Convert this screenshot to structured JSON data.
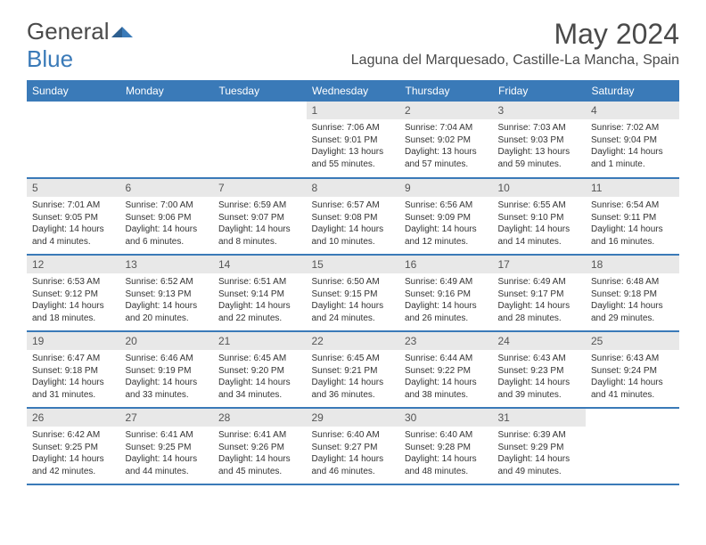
{
  "logo": {
    "text1": "General",
    "text2": "Blue"
  },
  "title": "May 2024",
  "location": "Laguna del Marquesado, Castille-La Mancha, Spain",
  "colors": {
    "header_bg": "#3a7ab8",
    "daynum_bg": "#e8e8e8",
    "border": "#3a7ab8",
    "text": "#4a4a4a"
  },
  "day_headers": [
    "Sunday",
    "Monday",
    "Tuesday",
    "Wednesday",
    "Thursday",
    "Friday",
    "Saturday"
  ],
  "weeks": [
    [
      {
        "n": "",
        "sr": "",
        "ss": "",
        "dl": ""
      },
      {
        "n": "",
        "sr": "",
        "ss": "",
        "dl": ""
      },
      {
        "n": "",
        "sr": "",
        "ss": "",
        "dl": ""
      },
      {
        "n": "1",
        "sr": "Sunrise: 7:06 AM",
        "ss": "Sunset: 9:01 PM",
        "dl": "Daylight: 13 hours and 55 minutes."
      },
      {
        "n": "2",
        "sr": "Sunrise: 7:04 AM",
        "ss": "Sunset: 9:02 PM",
        "dl": "Daylight: 13 hours and 57 minutes."
      },
      {
        "n": "3",
        "sr": "Sunrise: 7:03 AM",
        "ss": "Sunset: 9:03 PM",
        "dl": "Daylight: 13 hours and 59 minutes."
      },
      {
        "n": "4",
        "sr": "Sunrise: 7:02 AM",
        "ss": "Sunset: 9:04 PM",
        "dl": "Daylight: 14 hours and 1 minute."
      }
    ],
    [
      {
        "n": "5",
        "sr": "Sunrise: 7:01 AM",
        "ss": "Sunset: 9:05 PM",
        "dl": "Daylight: 14 hours and 4 minutes."
      },
      {
        "n": "6",
        "sr": "Sunrise: 7:00 AM",
        "ss": "Sunset: 9:06 PM",
        "dl": "Daylight: 14 hours and 6 minutes."
      },
      {
        "n": "7",
        "sr": "Sunrise: 6:59 AM",
        "ss": "Sunset: 9:07 PM",
        "dl": "Daylight: 14 hours and 8 minutes."
      },
      {
        "n": "8",
        "sr": "Sunrise: 6:57 AM",
        "ss": "Sunset: 9:08 PM",
        "dl": "Daylight: 14 hours and 10 minutes."
      },
      {
        "n": "9",
        "sr": "Sunrise: 6:56 AM",
        "ss": "Sunset: 9:09 PM",
        "dl": "Daylight: 14 hours and 12 minutes."
      },
      {
        "n": "10",
        "sr": "Sunrise: 6:55 AM",
        "ss": "Sunset: 9:10 PM",
        "dl": "Daylight: 14 hours and 14 minutes."
      },
      {
        "n": "11",
        "sr": "Sunrise: 6:54 AM",
        "ss": "Sunset: 9:11 PM",
        "dl": "Daylight: 14 hours and 16 minutes."
      }
    ],
    [
      {
        "n": "12",
        "sr": "Sunrise: 6:53 AM",
        "ss": "Sunset: 9:12 PM",
        "dl": "Daylight: 14 hours and 18 minutes."
      },
      {
        "n": "13",
        "sr": "Sunrise: 6:52 AM",
        "ss": "Sunset: 9:13 PM",
        "dl": "Daylight: 14 hours and 20 minutes."
      },
      {
        "n": "14",
        "sr": "Sunrise: 6:51 AM",
        "ss": "Sunset: 9:14 PM",
        "dl": "Daylight: 14 hours and 22 minutes."
      },
      {
        "n": "15",
        "sr": "Sunrise: 6:50 AM",
        "ss": "Sunset: 9:15 PM",
        "dl": "Daylight: 14 hours and 24 minutes."
      },
      {
        "n": "16",
        "sr": "Sunrise: 6:49 AM",
        "ss": "Sunset: 9:16 PM",
        "dl": "Daylight: 14 hours and 26 minutes."
      },
      {
        "n": "17",
        "sr": "Sunrise: 6:49 AM",
        "ss": "Sunset: 9:17 PM",
        "dl": "Daylight: 14 hours and 28 minutes."
      },
      {
        "n": "18",
        "sr": "Sunrise: 6:48 AM",
        "ss": "Sunset: 9:18 PM",
        "dl": "Daylight: 14 hours and 29 minutes."
      }
    ],
    [
      {
        "n": "19",
        "sr": "Sunrise: 6:47 AM",
        "ss": "Sunset: 9:18 PM",
        "dl": "Daylight: 14 hours and 31 minutes."
      },
      {
        "n": "20",
        "sr": "Sunrise: 6:46 AM",
        "ss": "Sunset: 9:19 PM",
        "dl": "Daylight: 14 hours and 33 minutes."
      },
      {
        "n": "21",
        "sr": "Sunrise: 6:45 AM",
        "ss": "Sunset: 9:20 PM",
        "dl": "Daylight: 14 hours and 34 minutes."
      },
      {
        "n": "22",
        "sr": "Sunrise: 6:45 AM",
        "ss": "Sunset: 9:21 PM",
        "dl": "Daylight: 14 hours and 36 minutes."
      },
      {
        "n": "23",
        "sr": "Sunrise: 6:44 AM",
        "ss": "Sunset: 9:22 PM",
        "dl": "Daylight: 14 hours and 38 minutes."
      },
      {
        "n": "24",
        "sr": "Sunrise: 6:43 AM",
        "ss": "Sunset: 9:23 PM",
        "dl": "Daylight: 14 hours and 39 minutes."
      },
      {
        "n": "25",
        "sr": "Sunrise: 6:43 AM",
        "ss": "Sunset: 9:24 PM",
        "dl": "Daylight: 14 hours and 41 minutes."
      }
    ],
    [
      {
        "n": "26",
        "sr": "Sunrise: 6:42 AM",
        "ss": "Sunset: 9:25 PM",
        "dl": "Daylight: 14 hours and 42 minutes."
      },
      {
        "n": "27",
        "sr": "Sunrise: 6:41 AM",
        "ss": "Sunset: 9:25 PM",
        "dl": "Daylight: 14 hours and 44 minutes."
      },
      {
        "n": "28",
        "sr": "Sunrise: 6:41 AM",
        "ss": "Sunset: 9:26 PM",
        "dl": "Daylight: 14 hours and 45 minutes."
      },
      {
        "n": "29",
        "sr": "Sunrise: 6:40 AM",
        "ss": "Sunset: 9:27 PM",
        "dl": "Daylight: 14 hours and 46 minutes."
      },
      {
        "n": "30",
        "sr": "Sunrise: 6:40 AM",
        "ss": "Sunset: 9:28 PM",
        "dl": "Daylight: 14 hours and 48 minutes."
      },
      {
        "n": "31",
        "sr": "Sunrise: 6:39 AM",
        "ss": "Sunset: 9:29 PM",
        "dl": "Daylight: 14 hours and 49 minutes."
      },
      {
        "n": "",
        "sr": "",
        "ss": "",
        "dl": ""
      }
    ]
  ]
}
